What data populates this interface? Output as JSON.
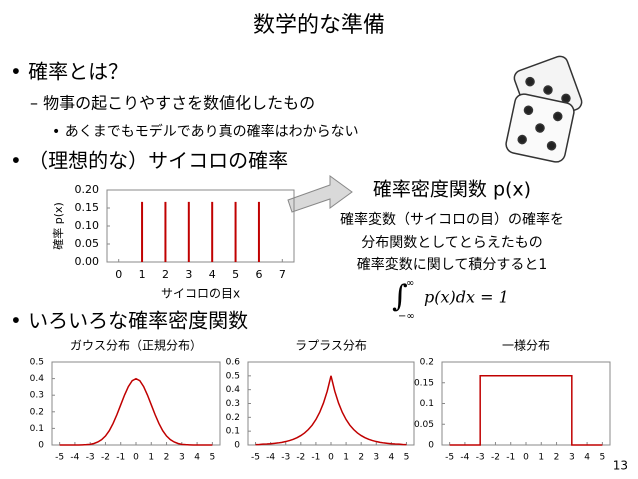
{
  "title": "数学的な準備",
  "bullets": [
    {
      "text": "• 確率とは？",
      "level": 1
    },
    {
      "text": "– 物事の起こりやすさを数値化したもの",
      "level": 2
    },
    {
      "text": "• あくまでもモデルであり真の確率はわからない",
      "level": 3
    },
    {
      "text": "• （理想的な）サイコロの確率",
      "level": 1
    },
    {
      "text": "• いろいろな確率密度関数",
      "level": 1
    }
  ],
  "callout": {
    "heading": "確率密度関数 p(x)",
    "lines": [
      "確率変数（サイコロの目）の確率を",
      "分布関数としてとらえたもの",
      "確率変数に関して積分すると1"
    ],
    "formula": {
      "integral": "∫",
      "upper": "∞",
      "lower": "−∞",
      "body": "p(x)dx = 1"
    }
  },
  "page_number": "13",
  "chart_data": [
    {
      "type": "stem",
      "xlabel": "サイコロの目x",
      "ylabel": "確率 p(x)",
      "color": "#c00000",
      "x": [
        1,
        2,
        3,
        4,
        5,
        6
      ],
      "values": [
        0.167,
        0.167,
        0.167,
        0.167,
        0.167,
        0.167
      ],
      "xlim": [
        -0.5,
        7.5
      ],
      "xticks": [
        0,
        1,
        2,
        3,
        4,
        5,
        6,
        7
      ],
      "ylim": [
        0,
        0.2
      ],
      "yticks": [
        {
          "value": 0,
          "label": "0.00"
        },
        {
          "value": 0.05,
          "label": "0.05"
        },
        {
          "value": 0.1,
          "label": "0.10"
        },
        {
          "value": 0.15,
          "label": "0.15"
        },
        {
          "value": 0.2,
          "label": "0.20"
        }
      ]
    },
    {
      "type": "line",
      "title": "ガウス分布（正規分布）",
      "color": "#c00000",
      "x": [
        -5,
        -4.75,
        -4.5,
        -4.25,
        -4,
        -3.75,
        -3.5,
        -3.25,
        -3,
        -2.75,
        -2.5,
        -2.25,
        -2,
        -1.75,
        -1.5,
        -1.25,
        -1,
        -0.75,
        -0.5,
        -0.25,
        0,
        0.25,
        0.5,
        0.75,
        1,
        1.25,
        1.5,
        1.75,
        2,
        2.25,
        2.5,
        2.75,
        3,
        3.25,
        3.5,
        3.75,
        4,
        4.25,
        4.5,
        4.75,
        5
      ],
      "values": [
        0,
        0,
        0,
        0,
        0,
        0,
        0.001,
        0.002,
        0.004,
        0.009,
        0.018,
        0.032,
        0.054,
        0.086,
        0.13,
        0.183,
        0.242,
        0.301,
        0.352,
        0.387,
        0.399,
        0.387,
        0.352,
        0.301,
        0.242,
        0.183,
        0.13,
        0.086,
        0.054,
        0.032,
        0.018,
        0.009,
        0.004,
        0.002,
        0.001,
        0,
        0,
        0,
        0,
        0,
        0
      ],
      "xlim": [
        -5.5,
        5.5
      ],
      "xticks": [
        -5,
        -4,
        -3,
        -2,
        -1,
        0,
        1,
        2,
        3,
        4,
        5
      ],
      "ylim": [
        0,
        0.5
      ],
      "yticks": [
        0,
        0.1,
        0.2,
        0.3,
        0.4,
        0.5
      ]
    },
    {
      "type": "line",
      "title": "ラプラス分布",
      "color": "#c00000",
      "x": [
        -5,
        -4.75,
        -4.5,
        -4.25,
        -4,
        -3.75,
        -3.5,
        -3.25,
        -3,
        -2.75,
        -2.5,
        -2.25,
        -2,
        -1.75,
        -1.5,
        -1.25,
        -1,
        -0.75,
        -0.5,
        -0.25,
        0,
        0.25,
        0.5,
        0.75,
        1,
        1.25,
        1.5,
        1.75,
        2,
        2.25,
        2.5,
        2.75,
        3,
        3.25,
        3.5,
        3.75,
        4,
        4.25,
        4.5,
        4.75,
        5
      ],
      "values": [
        0.003,
        0.004,
        0.006,
        0.007,
        0.009,
        0.012,
        0.015,
        0.019,
        0.025,
        0.032,
        0.041,
        0.053,
        0.068,
        0.087,
        0.112,
        0.143,
        0.184,
        0.236,
        0.303,
        0.389,
        0.5,
        0.389,
        0.303,
        0.236,
        0.184,
        0.143,
        0.112,
        0.087,
        0.068,
        0.053,
        0.041,
        0.032,
        0.025,
        0.019,
        0.015,
        0.012,
        0.009,
        0.007,
        0.006,
        0.004,
        0.003
      ],
      "xlim": [
        -5.5,
        5.5
      ],
      "xticks": [
        -5,
        -4,
        -3,
        -2,
        -1,
        0,
        1,
        2,
        3,
        4,
        5
      ],
      "ylim": [
        0,
        0.6
      ],
      "yticks": [
        0,
        0.1,
        0.2,
        0.3,
        0.4,
        0.5,
        0.6
      ]
    },
    {
      "type": "line",
      "title": "一様分布",
      "color": "#c00000",
      "x": [
        -5,
        -3,
        -3,
        3,
        3,
        5
      ],
      "values": [
        0,
        0,
        0.167,
        0.167,
        0,
        0
      ],
      "xlim": [
        -5.5,
        5.5
      ],
      "xticks": [
        -5,
        -4,
        -3,
        -2,
        -1,
        0,
        1,
        2,
        3,
        4,
        5
      ],
      "ylim": [
        0,
        0.2
      ],
      "yticks": [
        0,
        0.05,
        0.1,
        0.15,
        0.2
      ]
    }
  ]
}
